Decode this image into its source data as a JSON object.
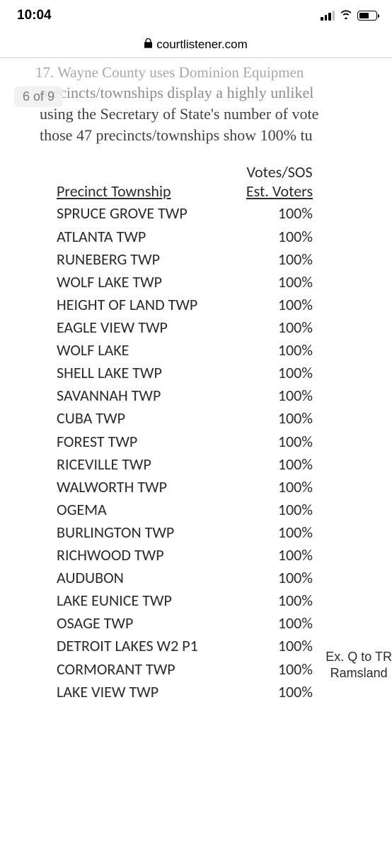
{
  "statusBar": {
    "time": "10:04"
  },
  "urlBar": {
    "domain": "courtlistener.com"
  },
  "pageIndicator": "6 of 9",
  "docLines": {
    "line1": "17. Wayne County uses Dominion Equipmen",
    "line2": "precincts/townships display a highly unlikel",
    "line3": "using the Secretary of State's number of vote",
    "line4": "those 47 precincts/townships show 100% tu"
  },
  "table": {
    "headerTop": "Votes/SOS",
    "headerLeft": "Precinct Township",
    "headerRight": "Est. Voters",
    "rows": [
      {
        "name": "SPRUCE GROVE TWP",
        "pct": "100%"
      },
      {
        "name": "ATLANTA TWP",
        "pct": "100%"
      },
      {
        "name": "RUNEBERG TWP",
        "pct": "100%"
      },
      {
        "name": "WOLF LAKE TWP",
        "pct": "100%"
      },
      {
        "name": "HEIGHT OF LAND TWP",
        "pct": "100%"
      },
      {
        "name": "EAGLE VIEW TWP",
        "pct": "100%"
      },
      {
        "name": "WOLF LAKE",
        "pct": "100%"
      },
      {
        "name": "SHELL LAKE TWP",
        "pct": "100%"
      },
      {
        "name": "SAVANNAH TWP",
        "pct": "100%"
      },
      {
        "name": "CUBA TWP",
        "pct": "100%"
      },
      {
        "name": "FOREST TWP",
        "pct": "100%"
      },
      {
        "name": "RICEVILLE TWP",
        "pct": "100%"
      },
      {
        "name": "WALWORTH TWP",
        "pct": "100%"
      },
      {
        "name": "OGEMA",
        "pct": "100%"
      },
      {
        "name": "BURLINGTON TWP",
        "pct": "100%"
      },
      {
        "name": "RICHWOOD TWP",
        "pct": "100%"
      },
      {
        "name": "AUDUBON",
        "pct": "100%"
      },
      {
        "name": "LAKE EUNICE TWP",
        "pct": "100%"
      },
      {
        "name": "OSAGE TWP",
        "pct": "100%"
      },
      {
        "name": "DETROIT LAKES W2 P1",
        "pct": "100%"
      },
      {
        "name": "CORMORANT TWP",
        "pct": "100%"
      },
      {
        "name": "LAKE VIEW TWP",
        "pct": "100%"
      }
    ]
  },
  "footer": {
    "line1": "Ex. Q to TR",
    "line2": "Ramsland"
  }
}
